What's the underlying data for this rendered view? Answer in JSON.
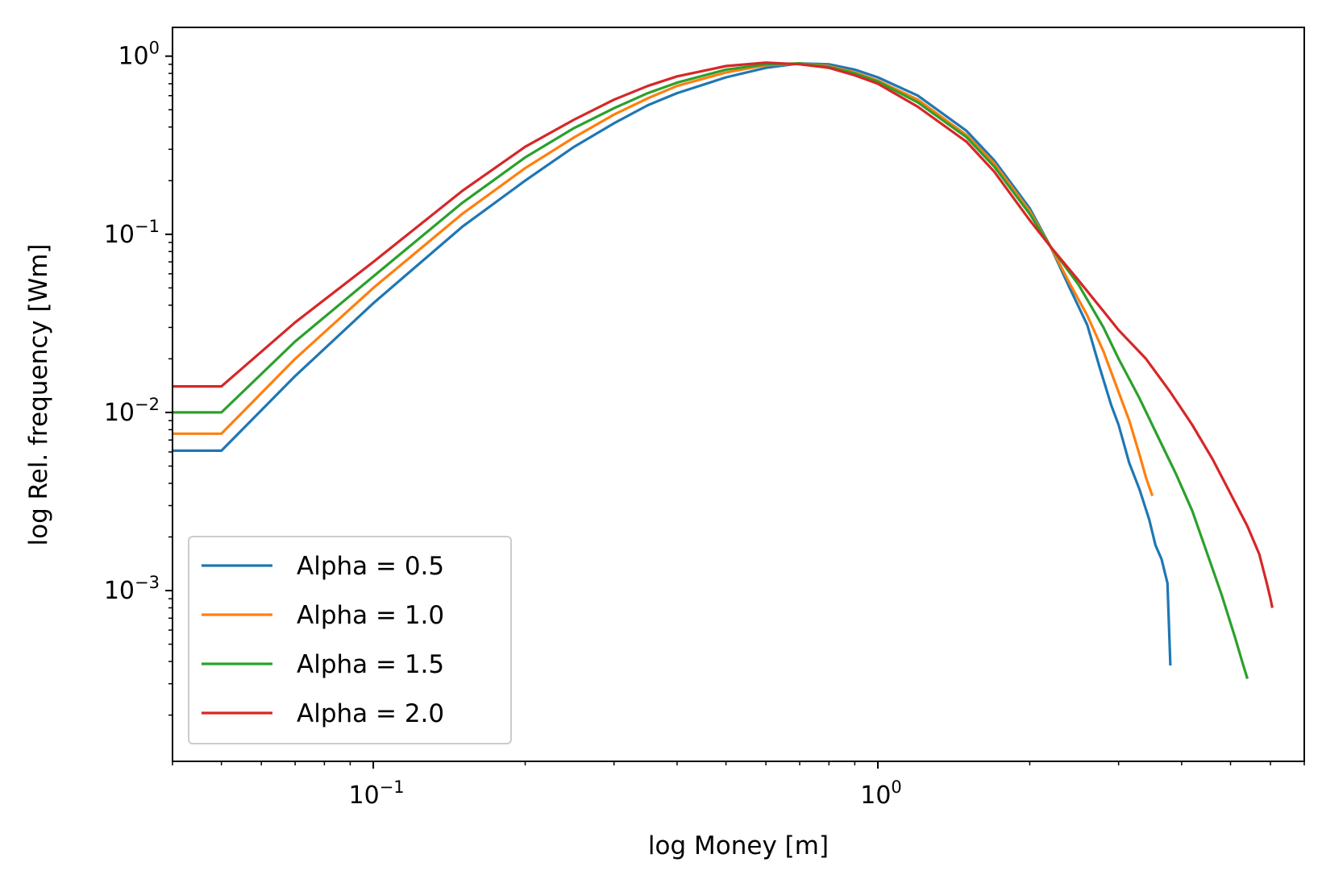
{
  "chart_data": {
    "type": "line",
    "xlabel": "log Money [m]",
    "ylabel": "log Rel. frequency [Wm]",
    "x_scale": "log",
    "y_scale": "log",
    "xlim": [
      0.04,
      7.0
    ],
    "ylim": [
      0.00011,
      1.45
    ],
    "x_ticks": [
      {
        "value": 0.1,
        "base": "10",
        "exp": "−1"
      },
      {
        "value": 1,
        "base": "10",
        "exp": "0"
      }
    ],
    "y_ticks": [
      {
        "value": 0.001,
        "base": "10",
        "exp": "−3"
      },
      {
        "value": 0.01,
        "base": "10",
        "exp": "−2"
      },
      {
        "value": 0.1,
        "base": "10",
        "exp": "−1"
      },
      {
        "value": 1,
        "base": "10",
        "exp": "0"
      }
    ],
    "grid": false,
    "legend_position": "lower-left",
    "series": [
      {
        "name": "Alpha = 0.5",
        "color": "#1f77b4",
        "points": [
          [
            0.04,
            0.0061
          ],
          [
            0.05,
            0.0061
          ],
          [
            0.07,
            0.016
          ],
          [
            0.1,
            0.041
          ],
          [
            0.15,
            0.11
          ],
          [
            0.2,
            0.2
          ],
          [
            0.25,
            0.31
          ],
          [
            0.3,
            0.42
          ],
          [
            0.35,
            0.53
          ],
          [
            0.4,
            0.62
          ],
          [
            0.5,
            0.76
          ],
          [
            0.6,
            0.86
          ],
          [
            0.7,
            0.91
          ],
          [
            0.8,
            0.9
          ],
          [
            0.9,
            0.84
          ],
          [
            1.0,
            0.76
          ],
          [
            1.2,
            0.6
          ],
          [
            1.5,
            0.38
          ],
          [
            1.7,
            0.26
          ],
          [
            2.0,
            0.14
          ],
          [
            2.2,
            0.085
          ],
          [
            2.4,
            0.05
          ],
          [
            2.6,
            0.031
          ],
          [
            2.75,
            0.018
          ],
          [
            2.9,
            0.011
          ],
          [
            3.0,
            0.0085
          ],
          [
            3.15,
            0.0052
          ],
          [
            3.3,
            0.0037
          ],
          [
            3.45,
            0.0025
          ],
          [
            3.55,
            0.0018
          ],
          [
            3.65,
            0.0015
          ],
          [
            3.75,
            0.0011
          ],
          [
            3.8,
            0.00038
          ]
        ]
      },
      {
        "name": "Alpha = 1.0",
        "color": "#ff7f0e",
        "points": [
          [
            0.04,
            0.0076
          ],
          [
            0.05,
            0.0076
          ],
          [
            0.07,
            0.02
          ],
          [
            0.1,
            0.05
          ],
          [
            0.15,
            0.13
          ],
          [
            0.2,
            0.235
          ],
          [
            0.25,
            0.35
          ],
          [
            0.3,
            0.47
          ],
          [
            0.35,
            0.58
          ],
          [
            0.4,
            0.68
          ],
          [
            0.5,
            0.81
          ],
          [
            0.6,
            0.89
          ],
          [
            0.7,
            0.91
          ],
          [
            0.8,
            0.88
          ],
          [
            0.9,
            0.81
          ],
          [
            1.0,
            0.73
          ],
          [
            1.2,
            0.57
          ],
          [
            1.5,
            0.36
          ],
          [
            1.7,
            0.25
          ],
          [
            2.0,
            0.135
          ],
          [
            2.2,
            0.085
          ],
          [
            2.4,
            0.053
          ],
          [
            2.6,
            0.035
          ],
          [
            2.8,
            0.022
          ],
          [
            3.0,
            0.013
          ],
          [
            3.15,
            0.009
          ],
          [
            3.3,
            0.0058
          ],
          [
            3.4,
            0.0043
          ],
          [
            3.5,
            0.0034
          ]
        ]
      },
      {
        "name": "Alpha = 1.5",
        "color": "#2ca02c",
        "points": [
          [
            0.04,
            0.01
          ],
          [
            0.05,
            0.01
          ],
          [
            0.07,
            0.025
          ],
          [
            0.1,
            0.058
          ],
          [
            0.15,
            0.15
          ],
          [
            0.2,
            0.27
          ],
          [
            0.25,
            0.395
          ],
          [
            0.3,
            0.51
          ],
          [
            0.35,
            0.62
          ],
          [
            0.4,
            0.71
          ],
          [
            0.5,
            0.84
          ],
          [
            0.6,
            0.9
          ],
          [
            0.7,
            0.91
          ],
          [
            0.8,
            0.87
          ],
          [
            0.9,
            0.8
          ],
          [
            1.0,
            0.72
          ],
          [
            1.2,
            0.55
          ],
          [
            1.5,
            0.35
          ],
          [
            1.7,
            0.24
          ],
          [
            2.0,
            0.13
          ],
          [
            2.2,
            0.085
          ],
          [
            2.5,
            0.052
          ],
          [
            2.8,
            0.03
          ],
          [
            3.0,
            0.02
          ],
          [
            3.3,
            0.012
          ],
          [
            3.6,
            0.0072
          ],
          [
            3.9,
            0.0045
          ],
          [
            4.2,
            0.0028
          ],
          [
            4.5,
            0.0016
          ],
          [
            4.8,
            0.00095
          ],
          [
            5.1,
            0.00055
          ],
          [
            5.3,
            0.00038
          ],
          [
            5.4,
            0.00032
          ]
        ]
      },
      {
        "name": "Alpha = 2.0",
        "color": "#d62728",
        "points": [
          [
            0.04,
            0.014
          ],
          [
            0.05,
            0.014
          ],
          [
            0.07,
            0.032
          ],
          [
            0.1,
            0.07
          ],
          [
            0.15,
            0.175
          ],
          [
            0.2,
            0.31
          ],
          [
            0.25,
            0.44
          ],
          [
            0.3,
            0.57
          ],
          [
            0.35,
            0.68
          ],
          [
            0.4,
            0.77
          ],
          [
            0.5,
            0.88
          ],
          [
            0.6,
            0.92
          ],
          [
            0.7,
            0.9
          ],
          [
            0.8,
            0.86
          ],
          [
            0.9,
            0.78
          ],
          [
            1.0,
            0.7
          ],
          [
            1.2,
            0.52
          ],
          [
            1.5,
            0.33
          ],
          [
            1.7,
            0.225
          ],
          [
            2.0,
            0.12
          ],
          [
            2.2,
            0.085
          ],
          [
            2.5,
            0.055
          ],
          [
            2.8,
            0.037
          ],
          [
            3.0,
            0.029
          ],
          [
            3.4,
            0.02
          ],
          [
            3.8,
            0.013
          ],
          [
            4.2,
            0.0085
          ],
          [
            4.6,
            0.0055
          ],
          [
            5.0,
            0.0035
          ],
          [
            5.4,
            0.0023
          ],
          [
            5.7,
            0.0016
          ],
          [
            5.9,
            0.0011
          ],
          [
            6.0,
            0.0009
          ],
          [
            6.05,
            0.0008
          ]
        ]
      }
    ]
  }
}
